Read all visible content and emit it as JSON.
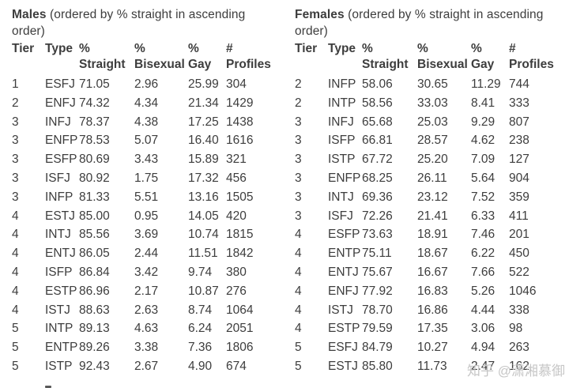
{
  "chart_data": [
    {
      "type": "table",
      "title_bold": "Males",
      "title_rest": " (ordered by % straight in ascending order)",
      "columns": [
        "Tier",
        "Type",
        "% Straight",
        "% Bisexual",
        "% Gay",
        "# Profiles"
      ],
      "rows": [
        [
          "1",
          "ESFJ",
          "71.05",
          "2.96",
          "25.99",
          "304"
        ],
        [
          "2",
          "ENFJ",
          "74.32",
          "4.34",
          "21.34",
          "1429"
        ],
        [
          "3",
          "INFJ",
          "78.37",
          "4.38",
          "17.25",
          "1438"
        ],
        [
          "3",
          "ENFP",
          "78.53",
          "5.07",
          "16.40",
          "1616"
        ],
        [
          "3",
          "ESFP",
          "80.69",
          "3.43",
          "15.89",
          "321"
        ],
        [
          "3",
          "ISFJ",
          "80.92",
          "1.75",
          "17.32",
          "456"
        ],
        [
          "3",
          "INFP",
          "81.33",
          "5.51",
          "13.16",
          "1505"
        ],
        [
          "4",
          "ESTJ",
          "85.00",
          "0.95",
          "14.05",
          "420"
        ],
        [
          "4",
          "INTJ",
          "85.56",
          "3.69",
          "10.74",
          "1815"
        ],
        [
          "4",
          "ENTJ",
          "86.05",
          "2.44",
          "11.51",
          "1842"
        ],
        [
          "4",
          "ISFP",
          "86.84",
          "3.42",
          "9.74",
          "380"
        ],
        [
          "4",
          "ESTP",
          "86.96",
          "2.17",
          "10.87",
          "276"
        ],
        [
          "4",
          "ISTJ",
          "88.63",
          "2.63",
          "8.74",
          "1064"
        ],
        [
          "5",
          "INTP",
          "89.13",
          "4.63",
          "6.24",
          "2051"
        ],
        [
          "5",
          "ENTP",
          "89.26",
          "3.38",
          "7.36",
          "1806"
        ],
        [
          "5",
          "ISTP",
          "92.43",
          "2.67",
          "4.90",
          "674"
        ]
      ]
    },
    {
      "type": "table",
      "title_bold": "Females",
      "title_rest": " (ordered by % straight in ascending order)",
      "columns": [
        "Tier",
        "Type",
        "% Straight",
        "% Bisexual",
        "% Gay",
        "# Profiles"
      ],
      "rows": [
        [
          "2",
          "INFP",
          "58.06",
          "30.65",
          "11.29",
          "744"
        ],
        [
          "2",
          "INTP",
          "58.56",
          "33.03",
          "8.41",
          "333"
        ],
        [
          "3",
          "INFJ",
          "65.68",
          "25.03",
          "9.29",
          "807"
        ],
        [
          "3",
          "ISFP",
          "66.81",
          "28.57",
          "4.62",
          "238"
        ],
        [
          "3",
          "ISTP",
          "67.72",
          "25.20",
          "7.09",
          "127"
        ],
        [
          "3",
          "ENFP",
          "68.25",
          "26.11",
          "5.64",
          "904"
        ],
        [
          "3",
          "INTJ",
          "69.36",
          "23.12",
          "7.52",
          "359"
        ],
        [
          "3",
          "ISFJ",
          "72.26",
          "21.41",
          "6.33",
          "411"
        ],
        [
          "4",
          "ESFP",
          "73.63",
          "18.91",
          "7.46",
          "201"
        ],
        [
          "4",
          "ENTP",
          "75.11",
          "18.67",
          "6.22",
          "450"
        ],
        [
          "4",
          "ENTJ",
          "75.67",
          "16.67",
          "7.66",
          "522"
        ],
        [
          "4",
          "ENFJ",
          "77.92",
          "16.83",
          "5.26",
          "1046"
        ],
        [
          "4",
          "ISTJ",
          "78.70",
          "16.86",
          "4.44",
          "338"
        ],
        [
          "4",
          "ESTP",
          "79.59",
          "17.35",
          "3.06",
          "98"
        ],
        [
          "5",
          "ESFJ",
          "84.79",
          "10.27",
          "4.94",
          "263"
        ],
        [
          "5",
          "ESTJ",
          "85.80",
          "11.73",
          "2.47",
          "162"
        ]
      ]
    }
  ],
  "watermark": {
    "text": "知乎 @潇湘慕御"
  },
  "colors": {
    "text": "#3d3d3d",
    "watermark": "#c6c6c6",
    "background": "#ffffff"
  }
}
